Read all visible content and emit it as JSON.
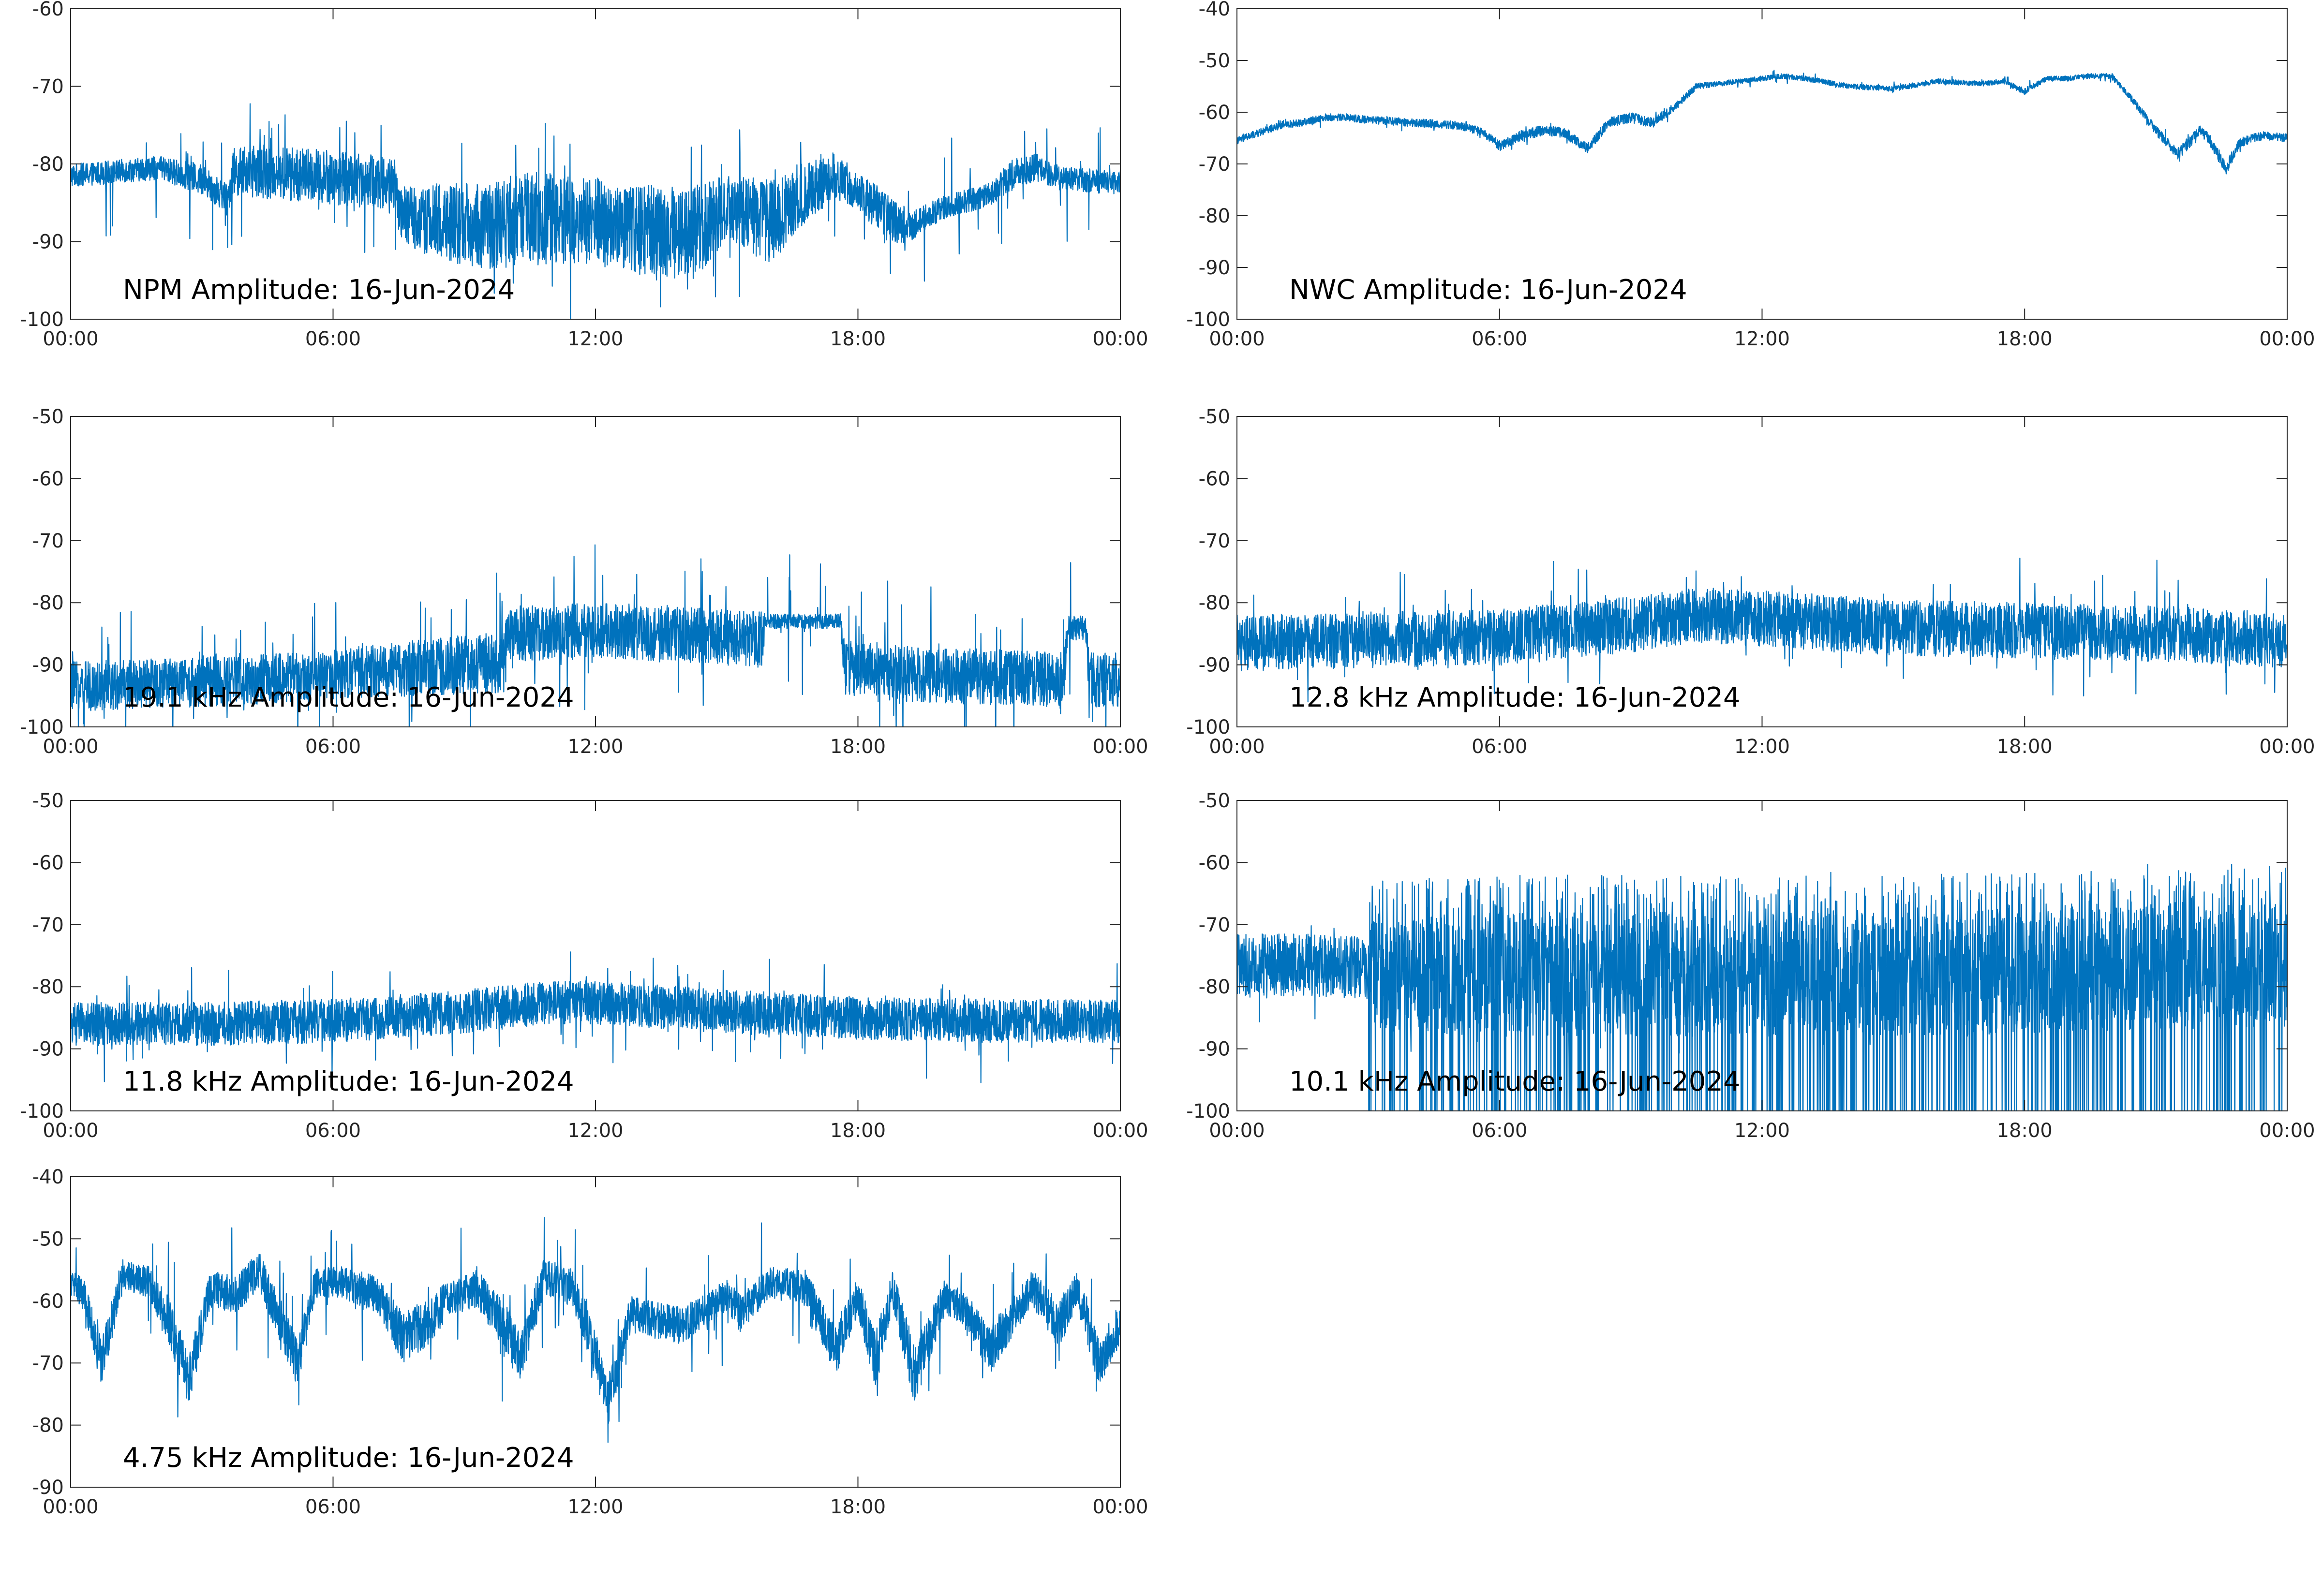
{
  "chart_data": [
    {
      "type": "line",
      "annotation": "NPM Amplitude: 16-Jun-2024",
      "x_tick_labels": [
        "00:00",
        "06:00",
        "12:00",
        "18:00",
        "00:00"
      ],
      "y_ticks": [
        -100,
        -90,
        -80,
        -70,
        -60
      ],
      "xlim": [
        0,
        24
      ],
      "ylim": [
        -100,
        -60
      ],
      "grid": false,
      "line_color": "#0072BD",
      "series": [
        {
          "x": [
            0,
            1,
            2,
            3,
            3.6,
            3.7,
            4.5,
            5.5,
            6.5,
            7.4,
            7.5,
            8.5,
            9.5,
            10.5,
            11.5,
            12.5,
            13.2,
            13.8,
            14.5,
            15,
            16,
            16.5,
            17,
            17.5,
            18,
            18.5,
            18.8,
            19.2,
            20,
            21,
            21.5,
            22,
            22.5,
            23,
            24
          ],
          "center": [
            -81.5,
            -81,
            -80.5,
            -82,
            -84.5,
            -81,
            -81,
            -81.5,
            -82,
            -82.5,
            -86.5,
            -87.5,
            -88,
            -87,
            -87,
            -88,
            -88.5,
            -89,
            -88,
            -85.5,
            -87.5,
            -85,
            -82.5,
            -81.5,
            -83.5,
            -86,
            -87.5,
            -88,
            -85.5,
            -84,
            -81.5,
            -80.5,
            -81.5,
            -82,
            -82.5
          ],
          "spread": [
            1.5,
            1.5,
            1.5,
            2,
            2,
            3,
            3.5,
            3.5,
            3.5,
            3.5,
            3.5,
            5,
            5.5,
            6,
            6,
            5.5,
            6,
            6,
            5.5,
            4,
            5.5,
            4.5,
            4,
            3,
            2.5,
            3,
            3,
            2,
            1.5,
            1.5,
            2,
            2,
            1.5,
            1.5,
            1.5
          ],
          "spike_amplitude": 4
        }
      ]
    },
    {
      "type": "line",
      "annotation": "NWC Amplitude: 16-Jun-2024",
      "x_tick_labels": [
        "00:00",
        "06:00",
        "12:00",
        "18:00",
        "00:00"
      ],
      "y_ticks": [
        -100,
        -90,
        -80,
        -70,
        -60,
        -50,
        -40
      ],
      "xlim": [
        0,
        24
      ],
      "ylim": [
        -100,
        -40
      ],
      "grid": false,
      "line_color": "#0072BD",
      "series": [
        {
          "x": [
            0,
            0.5,
            1,
            1.5,
            2,
            2.5,
            3,
            4,
            5,
            5.5,
            5.8,
            6,
            6.5,
            7,
            7.5,
            8,
            8.5,
            9,
            9.5,
            10,
            10.5,
            11,
            12,
            12.5,
            13,
            14,
            15,
            16,
            17,
            17.5,
            18,
            18.5,
            19,
            19.5,
            20,
            20.5,
            21,
            21.5,
            21.7,
            22,
            22.2,
            22.6,
            22.9,
            23.2,
            23.5,
            24
          ],
          "center": [
            -65.5,
            -64,
            -62.5,
            -62,
            -61,
            -61,
            -61.5,
            -62,
            -62.5,
            -63.5,
            -65,
            -66.5,
            -64.5,
            -63.5,
            -64,
            -67,
            -62,
            -61,
            -62,
            -59,
            -55,
            -54.5,
            -53.5,
            -53,
            -53.5,
            -55,
            -55.5,
            -54,
            -54.5,
            -54,
            -56,
            -53.5,
            -53.5,
            -53,
            -53,
            -58,
            -63.5,
            -68,
            -66.5,
            -63.5,
            -65,
            -71,
            -66,
            -65,
            -64.5,
            -65
          ],
          "spread": [
            0.7,
            0.7,
            0.7,
            0.7,
            0.7,
            0.7,
            0.7,
            0.8,
            0.8,
            0.8,
            0.8,
            1,
            1,
            1,
            1,
            1,
            1,
            1,
            1,
            0.8,
            0.6,
            0.5,
            0.5,
            0.5,
            0.5,
            0.5,
            0.5,
            0.5,
            0.5,
            0.5,
            0.6,
            0.5,
            0.5,
            0.5,
            0.5,
            0.7,
            0.9,
            1.1,
            1.1,
            1,
            1,
            1.3,
            1,
            0.8,
            0.8,
            0.8
          ],
          "spike_amplitude": 0.6
        }
      ]
    },
    {
      "type": "line",
      "annotation": "19.1 kHz Amplitude: 16-Jun-2024",
      "x_tick_labels": [
        "00:00",
        "06:00",
        "12:00",
        "18:00",
        "00:00"
      ],
      "y_ticks": [
        -100,
        -90,
        -80,
        -70,
        -60,
        -50
      ],
      "xlim": [
        0,
        24
      ],
      "ylim": [
        -100,
        -50
      ],
      "grid": false,
      "line_color": "#0072BD",
      "series": [
        {
          "x": [
            0,
            2,
            4,
            6,
            8,
            9.9,
            10,
            12,
            14,
            15.8,
            15.9,
            17.6,
            17.7,
            19,
            21,
            22.7,
            22.8,
            23.2,
            23.3,
            24
          ],
          "center": [
            -93.5,
            -93,
            -92.5,
            -91.5,
            -90.5,
            -89.5,
            -85,
            -84.5,
            -85,
            -86,
            -83,
            -83,
            -90.5,
            -91.5,
            -92,
            -92.5,
            -84,
            -84,
            -92.5,
            -92.5
          ],
          "spread": [
            4,
            4,
            4,
            4,
            4.5,
            5,
            4.5,
            4.5,
            4.5,
            4.5,
            1.2,
            1.2,
            4.5,
            4.5,
            4.5,
            4.5,
            2,
            2,
            4.5,
            4.5
          ],
          "spike_amplitude": 6
        }
      ]
    },
    {
      "type": "line",
      "annotation": "12.8 kHz Amplitude: 16-Jun-2024",
      "x_tick_labels": [
        "00:00",
        "06:00",
        "12:00",
        "18:00",
        "00:00"
      ],
      "y_ticks": [
        -100,
        -90,
        -80,
        -70,
        -60,
        -50
      ],
      "xlim": [
        0,
        24
      ],
      "ylim": [
        -100,
        -50
      ],
      "grid": false,
      "line_color": "#0072BD",
      "series": [
        {
          "x": [
            0,
            3,
            6,
            9,
            10.5,
            12,
            15,
            18,
            21,
            24
          ],
          "center": [
            -86.5,
            -86,
            -85.5,
            -83.5,
            -82,
            -82.5,
            -84,
            -84.5,
            -85,
            -86
          ],
          "spread": [
            4.5,
            4.5,
            4.5,
            4.5,
            4.5,
            4.5,
            4.5,
            4.5,
            4.5,
            4.5
          ],
          "spike_amplitude": 4
        }
      ]
    },
    {
      "type": "line",
      "annotation": "11.8 kHz Amplitude: 16-Jun-2024",
      "x_tick_labels": [
        "00:00",
        "06:00",
        "12:00",
        "18:00",
        "00:00"
      ],
      "y_ticks": [
        -100,
        -90,
        -80,
        -70,
        -60,
        -50
      ],
      "xlim": [
        0,
        24
      ],
      "ylim": [
        -100,
        -50
      ],
      "grid": false,
      "line_color": "#0072BD",
      "series": [
        {
          "x": [
            0,
            3,
            6,
            9,
            11,
            12,
            15,
            18,
            21,
            24
          ],
          "center": [
            -86,
            -86,
            -85.5,
            -84,
            -82.5,
            -82.5,
            -84,
            -85,
            -85.5,
            -85.5
          ],
          "spread": [
            3.5,
            3.5,
            3.5,
            3.5,
            3.5,
            3.5,
            3.5,
            3.5,
            3.5,
            3.5
          ],
          "spike_amplitude": 4
        }
      ]
    },
    {
      "type": "line",
      "annotation": "10.1 kHz Amplitude: 16-Jun-2024",
      "x_tick_labels": [
        "00:00",
        "06:00",
        "12:00",
        "18:00",
        "00:00"
      ],
      "y_ticks": [
        -100,
        -90,
        -80,
        -70,
        -60,
        -50
      ],
      "xlim": [
        0,
        24
      ],
      "ylim": [
        -100,
        -50
      ],
      "grid": false,
      "line_color": "#0072BD",
      "series": [
        {
          "x": [
            0,
            1.5,
            3,
            3.1,
            6,
            9,
            12,
            15,
            18,
            21,
            24
          ],
          "center": [
            -76.5,
            -76.5,
            -77,
            -78,
            -78,
            -78,
            -78,
            -78,
            -77.5,
            -77,
            -76.5
          ],
          "spread": [
            5,
            5,
            5,
            9,
            10,
            10,
            10,
            10,
            10,
            10,
            10
          ],
          "dropout_start_hour": 3,
          "spike_amplitude": 4
        }
      ]
    },
    {
      "type": "line",
      "annotation": "4.75 kHz Amplitude: 16-Jun-2024",
      "x_tick_labels": [
        "00:00",
        "06:00",
        "12:00",
        "18:00",
        "00:00"
      ],
      "y_ticks": [
        -90,
        -80,
        -70,
        -60,
        -50,
        -40
      ],
      "xlim": [
        0,
        24
      ],
      "ylim": [
        -90,
        -40
      ],
      "grid": false,
      "line_color": "#0072BD",
      "series": [
        {
          "x": [
            0,
            0.3,
            0.7,
            1.2,
            1.8,
            2.3,
            2.7,
            3.2,
            3.8,
            4.3,
            4.8,
            5.2,
            5.6,
            6.2,
            7,
            7.6,
            8.2,
            8.6,
            9.3,
            10,
            10.3,
            10.8,
            11.5,
            11.8,
            12.3,
            12.8,
            13.3,
            14,
            15,
            15.3,
            16,
            16.8,
            17.5,
            18,
            18.4,
            18.8,
            19.3,
            20,
            20.5,
            21,
            21.6,
            22,
            22.6,
            23,
            23.5,
            24
          ],
          "center": [
            -57,
            -59,
            -70,
            -56,
            -57,
            -64,
            -73,
            -58,
            -59,
            -55,
            -64,
            -70,
            -57,
            -57,
            -59,
            -66,
            -63,
            -60,
            -58,
            -65,
            -69,
            -56,
            -58,
            -64,
            -76,
            -62,
            -63,
            -64,
            -59,
            -62,
            -57,
            -58,
            -68,
            -59,
            -70,
            -58,
            -72,
            -59,
            -62,
            -68,
            -62,
            -58,
            -64,
            -58,
            -70,
            -64
          ],
          "spread": [
            2.5,
            2.5,
            4,
            2.5,
            2.5,
            4,
            4,
            3,
            3,
            3,
            4,
            4,
            2.5,
            2.5,
            3,
            4,
            4,
            3,
            3,
            4,
            4,
            3,
            3,
            4,
            4,
            3,
            3,
            3,
            2.5,
            3,
            2.5,
            3,
            4,
            3,
            5,
            3,
            5,
            3,
            3,
            4,
            3,
            3,
            4,
            3,
            4,
            3
          ],
          "spike_amplitude": 5
        }
      ]
    }
  ]
}
